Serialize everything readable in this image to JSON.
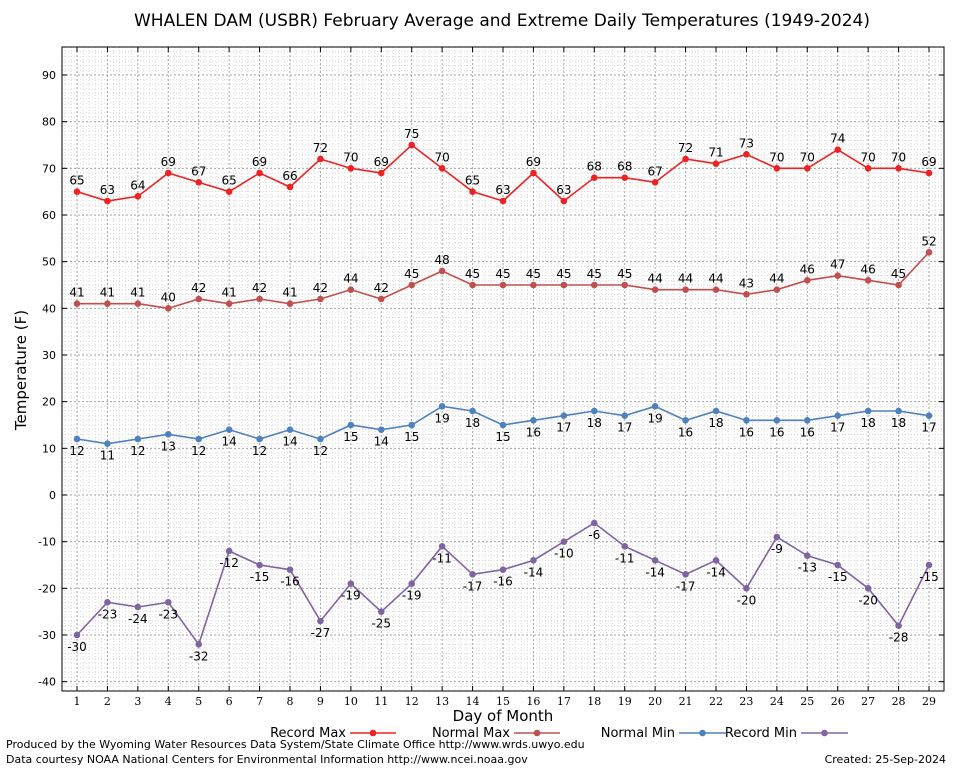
{
  "title": "WHALEN DAM (USBR) February Average and Extreme Daily Temperatures (1949-2024)",
  "footer": {
    "line1": "Produced by the Wyoming Water Resources Data System/State Climate Office http://www.wrds.uwyo.edu",
    "line2": "Data courtesy NOAA National Centers for Environmental Information http://www.ncei.noaa.gov",
    "created": "Created:  25-Sep-2024"
  },
  "chart_data": {
    "type": "line",
    "title": "WHALEN DAM (USBR) February Average and Extreme Daily Temperatures (1949-2024)",
    "xlabel": "Day of Month",
    "ylabel": "Temperature (F)",
    "ylim": [
      -42,
      96
    ],
    "yticks": [
      -40,
      -30,
      -20,
      -10,
      0,
      10,
      20,
      30,
      40,
      50,
      60,
      70,
      80,
      90
    ],
    "grid": true,
    "legend_position": "bottom",
    "x": [
      1,
      2,
      3,
      4,
      5,
      6,
      7,
      8,
      9,
      10,
      11,
      12,
      13,
      14,
      15,
      16,
      17,
      18,
      19,
      20,
      21,
      22,
      23,
      24,
      25,
      26,
      27,
      28,
      29
    ],
    "series": [
      {
        "name": "Record Max",
        "color": "#ee2222",
        "label_pos": "above",
        "values": [
          65,
          63,
          64,
          69,
          67,
          65,
          69,
          66,
          72,
          70,
          69,
          75,
          70,
          65,
          63,
          69,
          63,
          68,
          68,
          67,
          72,
          71,
          73,
          70,
          70,
          74,
          70,
          70,
          69
        ]
      },
      {
        "name": "Normal Max",
        "color": "#c0504d",
        "label_pos": "above",
        "values": [
          41,
          41,
          41,
          40,
          42,
          41,
          42,
          41,
          42,
          44,
          42,
          45,
          48,
          45,
          45,
          45,
          45,
          45,
          45,
          44,
          44,
          44,
          43,
          44,
          46,
          47,
          46,
          45,
          52
        ]
      },
      {
        "name": "Normal Min",
        "color": "#4f81bd",
        "label_pos": "below",
        "values": [
          12,
          11,
          12,
          13,
          12,
          14,
          12,
          14,
          12,
          15,
          14,
          15,
          19,
          18,
          15,
          16,
          17,
          18,
          17,
          19,
          16,
          18,
          16,
          16,
          16,
          17,
          18,
          18,
          17
        ]
      },
      {
        "name": "Record Min",
        "color": "#8064a2",
        "label_pos": "below",
        "values": [
          -30,
          -23,
          -24,
          -23,
          -32,
          -12,
          -15,
          -16,
          -27,
          -19,
          -25,
          -19,
          -11,
          -17,
          -16,
          -14,
          -10,
          -6,
          -11,
          -14,
          -17,
          -14,
          -20,
          -9,
          -13,
          -15,
          -20,
          -28,
          -15
        ]
      }
    ]
  }
}
